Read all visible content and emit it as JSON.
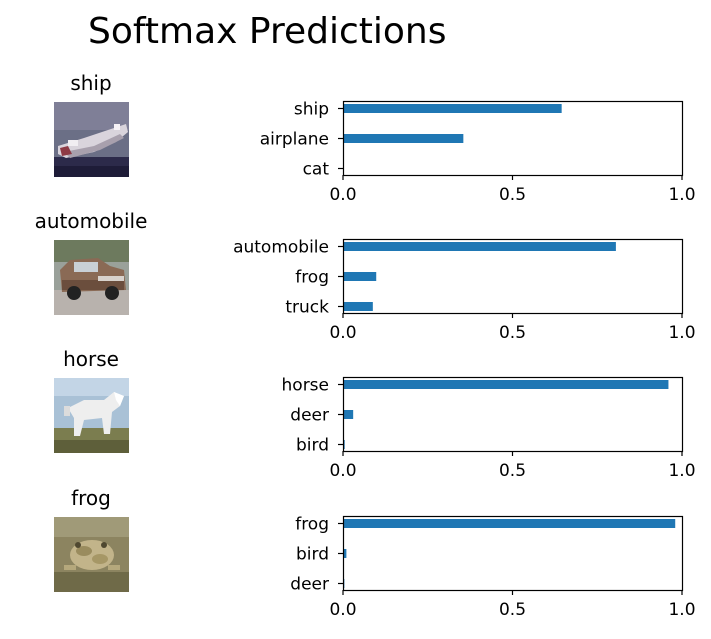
{
  "title": "Softmax Predictions",
  "colors": {
    "bar": "#1f77b4",
    "axis": "#000000"
  },
  "chart_data": [
    {
      "type": "bar",
      "orientation": "horizontal",
      "image_title": "ship",
      "image_icon": "ship-thumbnail",
      "categories": [
        "ship",
        "airplane",
        "cat"
      ],
      "values": [
        0.645,
        0.355,
        0.0
      ],
      "xlim": [
        0,
        1
      ],
      "xticks": [
        "0.0",
        "0.5",
        "1.0"
      ]
    },
    {
      "type": "bar",
      "orientation": "horizontal",
      "image_title": "automobile",
      "image_icon": "automobile-thumbnail",
      "categories": [
        "automobile",
        "frog",
        "truck"
      ],
      "values": [
        0.805,
        0.098,
        0.088
      ],
      "xlim": [
        0,
        1
      ],
      "xticks": [
        "0.0",
        "0.5",
        "1.0"
      ]
    },
    {
      "type": "bar",
      "orientation": "horizontal",
      "image_title": "horse",
      "image_icon": "horse-thumbnail",
      "categories": [
        "horse",
        "deer",
        "bird"
      ],
      "values": [
        0.96,
        0.03,
        0.005
      ],
      "xlim": [
        0,
        1
      ],
      "xticks": [
        "0.0",
        "0.5",
        "1.0"
      ]
    },
    {
      "type": "bar",
      "orientation": "horizontal",
      "image_title": "frog",
      "image_icon": "frog-thumbnail",
      "categories": [
        "frog",
        "bird",
        "deer"
      ],
      "values": [
        0.98,
        0.01,
        0.004
      ],
      "xlim": [
        0,
        1
      ],
      "xticks": [
        "0.0",
        "0.5",
        "1.0"
      ]
    }
  ]
}
